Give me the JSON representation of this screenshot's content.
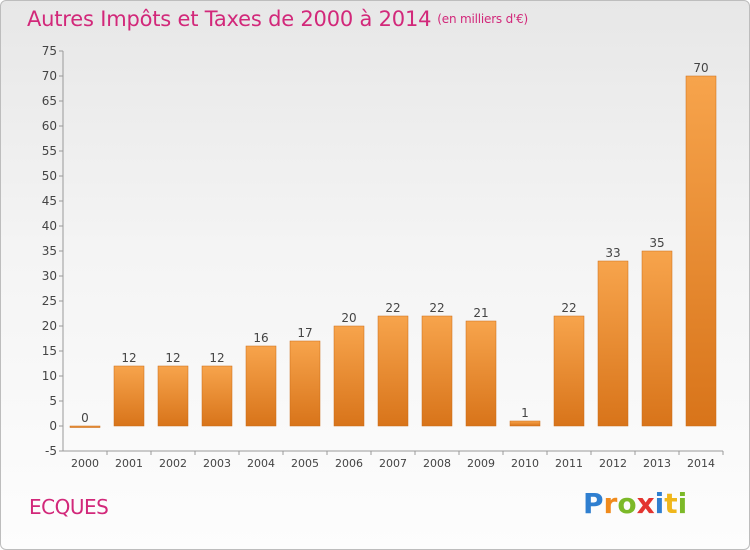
{
  "header": {
    "title": "Autres Impôts et Taxes de 2000 à 2014",
    "unit": "(en milliers d'€)"
  },
  "footer": {
    "commune": "ECQUES",
    "brand": "Proxiti",
    "brand_letters": [
      {
        "char": "P",
        "color": "#2f7fd0"
      },
      {
        "char": "r",
        "color": "#f08a1c"
      },
      {
        "char": "o",
        "color": "#7cb928"
      },
      {
        "char": "x",
        "color": "#e3342f"
      },
      {
        "char": "i",
        "color": "#2f7fd0"
      },
      {
        "char": "t",
        "color": "#f0b71c"
      },
      {
        "char": "i",
        "color": "#7cb928"
      }
    ]
  },
  "colors": {
    "accent": "#d2287a",
    "bar_light": "#f7a44c",
    "bar_dark": "#d8741a",
    "axis_text": "#444444"
  },
  "chart_data": {
    "type": "bar",
    "title": "Autres Impôts et Taxes de 2000 à 2014",
    "subtitle": "(en milliers d'€)",
    "categories": [
      "2000",
      "2001",
      "2002",
      "2003",
      "2004",
      "2005",
      "2006",
      "2007",
      "2008",
      "2009",
      "2010",
      "2011",
      "2012",
      "2013",
      "2014"
    ],
    "values": [
      0,
      12,
      12,
      12,
      16,
      17,
      20,
      22,
      22,
      21,
      1,
      22,
      33,
      35,
      70
    ],
    "ylim": [
      -5,
      75
    ],
    "yticks": [
      -5,
      0,
      5,
      10,
      15,
      20,
      25,
      30,
      35,
      40,
      45,
      50,
      55,
      60,
      65,
      70,
      75
    ],
    "grid": false,
    "data_labels": true,
    "legend": "none"
  }
}
